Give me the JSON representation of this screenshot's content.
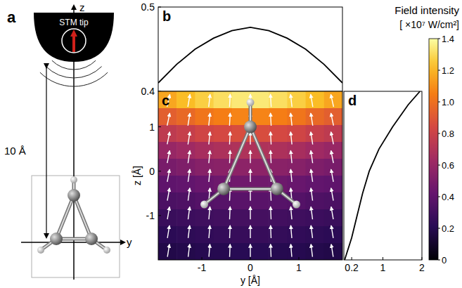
{
  "schematic": {
    "letter": "a",
    "tip_label": "STM tip",
    "distance_label": "10 Å",
    "z_axis": "z",
    "y_axis": "y"
  },
  "chart_data": [
    {
      "letter": "b",
      "type": "line",
      "color": "#000000",
      "tick_labels": "y",
      "x": [
        -1.9,
        -1.52,
        -1.14,
        -0.76,
        -0.38,
        0,
        0.38,
        0.76,
        1.14,
        1.52,
        1.9
      ],
      "values": [
        0.41,
        0.432,
        0.45,
        0.463,
        0.472,
        0.476,
        0.472,
        0.463,
        0.45,
        0.432,
        0.41
      ],
      "xlim": [
        -1.9,
        1.9
      ],
      "ylim": [
        0.4,
        0.5
      ],
      "yticks": [
        0.4,
        0.5
      ]
    },
    {
      "letter": "c",
      "type": "heatmap",
      "xlabel": "y [Å]",
      "ylabel": "z [Å]",
      "xlim": [
        -1.9,
        1.9
      ],
      "ylim": [
        -2,
        1.8
      ],
      "xticks": [
        -1,
        0,
        1
      ],
      "yticks": [
        -1,
        0,
        1
      ],
      "cells": [
        [
          1.16,
          1.22,
          1.27,
          1.31,
          1.34,
          1.34,
          1.31,
          1.27,
          1.22,
          1.16
        ],
        [
          0.93,
          0.97,
          1.02,
          1.05,
          1.07,
          1.07,
          1.05,
          1.02,
          0.97,
          0.93
        ],
        [
          0.75,
          0.78,
          0.82,
          0.84,
          0.86,
          0.86,
          0.84,
          0.82,
          0.78,
          0.75
        ],
        [
          0.6,
          0.63,
          0.66,
          0.68,
          0.69,
          0.69,
          0.68,
          0.66,
          0.63,
          0.6
        ],
        [
          0.49,
          0.51,
          0.54,
          0.55,
          0.56,
          0.56,
          0.55,
          0.54,
          0.51,
          0.49
        ],
        [
          0.4,
          0.41,
          0.43,
          0.45,
          0.46,
          0.46,
          0.45,
          0.43,
          0.41,
          0.4
        ],
        [
          0.33,
          0.34,
          0.36,
          0.37,
          0.38,
          0.38,
          0.37,
          0.36,
          0.34,
          0.33
        ],
        [
          0.27,
          0.28,
          0.29,
          0.3,
          0.31,
          0.31,
          0.3,
          0.29,
          0.28,
          0.27
        ],
        [
          0.22,
          0.23,
          0.24,
          0.25,
          0.26,
          0.26,
          0.25,
          0.24,
          0.23,
          0.22
        ],
        [
          0.18,
          0.19,
          0.2,
          0.2,
          0.21,
          0.21,
          0.2,
          0.2,
          0.19,
          0.18
        ]
      ],
      "colorbar": {
        "title": "Field intensity",
        "unit_label": "[ ×10⁷ W/cm²]",
        "range": [
          0,
          1.4
        ],
        "ticks": [
          0,
          0.2,
          0.4,
          0.6,
          0.8,
          {
            "value": 1,
            "label": "1.0"
          },
          1.2,
          1.4
        ]
      }
    },
    {
      "letter": "d",
      "type": "line",
      "orientation": "horizontal",
      "color": "#000000",
      "tick_labels": "x",
      "z": [
        -2,
        -1.5,
        -1,
        -0.5,
        0,
        0.5,
        1,
        1.5,
        1.8
      ],
      "values": [
        0.02,
        0.2,
        0.34,
        0.48,
        0.65,
        0.9,
        1.25,
        1.65,
        1.95
      ],
      "xlim": [
        0,
        2
      ],
      "xticks": [
        0.2,
        1,
        2
      ],
      "ylim": [
        -2,
        1.8
      ]
    }
  ]
}
